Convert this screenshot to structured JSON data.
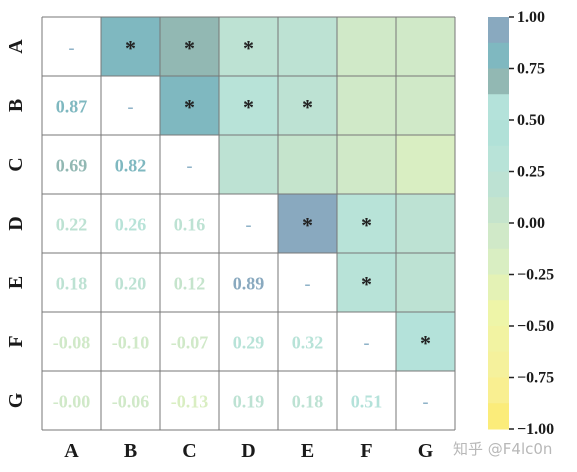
{
  "chart_data": {
    "type": "heatmap",
    "labels": [
      "A",
      "B",
      "C",
      "D",
      "E",
      "F",
      "G"
    ],
    "vmin": -1,
    "vmax": 1,
    "diagonal_text": "-",
    "significance_marker": "*",
    "lower_values": [
      [
        null,
        null,
        null,
        null,
        null,
        null,
        null
      ],
      [
        0.87,
        null,
        null,
        null,
        null,
        null,
        null
      ],
      [
        0.69,
        0.82,
        null,
        null,
        null,
        null,
        null
      ],
      [
        0.22,
        0.26,
        0.16,
        null,
        null,
        null,
        null
      ],
      [
        0.18,
        0.2,
        0.12,
        0.89,
        null,
        null,
        null
      ],
      [
        -0.08,
        -0.1,
        -0.07,
        0.29,
        0.32,
        null,
        null
      ],
      [
        -0.0,
        -0.06,
        -0.13,
        0.19,
        0.18,
        0.51,
        null
      ]
    ],
    "lower_text": [
      [
        "",
        "",
        "",
        "",
        "",
        "",
        ""
      ],
      [
        "0.87",
        "",
        "",
        "",
        "",
        "",
        ""
      ],
      [
        "0.69",
        "0.82",
        "",
        "",
        "",
        "",
        ""
      ],
      [
        "0.22",
        "0.26",
        "0.16",
        "",
        "",
        "",
        ""
      ],
      [
        "0.18",
        "0.20",
        "0.12",
        "0.89",
        "",
        "",
        ""
      ],
      [
        "-0.08",
        "-0.10",
        "-0.07",
        "0.29",
        "0.32",
        "",
        ""
      ],
      [
        "-0.00",
        "-0.06",
        "-0.13",
        "0.19",
        "0.18",
        "0.51",
        ""
      ]
    ],
    "significant": [
      [
        false,
        true,
        true,
        true,
        false,
        false,
        false
      ],
      [
        false,
        false,
        true,
        true,
        true,
        false,
        false
      ],
      [
        false,
        false,
        false,
        false,
        false,
        false,
        false
      ],
      [
        false,
        false,
        false,
        false,
        true,
        true,
        false
      ],
      [
        false,
        false,
        false,
        false,
        false,
        true,
        false
      ],
      [
        false,
        false,
        false,
        false,
        false,
        false,
        true
      ],
      [
        false,
        false,
        false,
        false,
        false,
        false,
        false
      ]
    ],
    "colorbar": {
      "ticks": [
        "1.00",
        "0.75",
        "0.50",
        "0.25",
        "0.00",
        "−0.25",
        "−0.50",
        "−0.75",
        "−1.00"
      ],
      "tick_values": [
        1.0,
        0.75,
        0.5,
        0.25,
        0.0,
        -0.25,
        -0.5,
        -0.75,
        -1.0
      ],
      "colors_top_to_bottom": [
        "#89a9bf",
        "#7fb8c0",
        "#92b8b3",
        "#b4e2da",
        "#b1e1d8",
        "#b8e3d8",
        "#bde2d3",
        "#c5e4cc",
        "#d0e9c8",
        "#d9eec2",
        "#e4f2b5",
        "#eef5a8",
        "#f2f3a2",
        "#f5f19c",
        "#f9ef91",
        "#fbec7a"
      ]
    },
    "grid_color": "#777777",
    "accent_colors": {
      "high": "#86a9bf",
      "mid": "#7fb8c0",
      "low": "#a8e0d2"
    }
  },
  "watermark": "知乎 @F4lc0n"
}
